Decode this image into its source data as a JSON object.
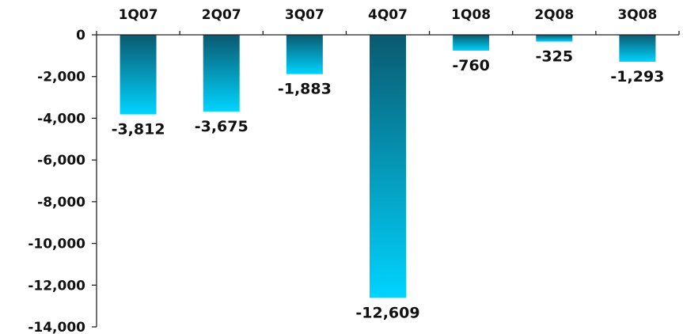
{
  "chart_data": {
    "type": "bar",
    "title": "",
    "xlabel": "",
    "ylabel": "",
    "categories": [
      "1Q07",
      "2Q07",
      "3Q07",
      "4Q07",
      "1Q08",
      "2Q08",
      "3Q08"
    ],
    "values": [
      -3812,
      -3675,
      -1883,
      -12609,
      -760,
      -325,
      -1293
    ],
    "value_labels": [
      "-3,812",
      "-3,675",
      "-1,883",
      "-12,609",
      "-760",
      "-325",
      "-1,293"
    ],
    "ylim": [
      -14000,
      0
    ],
    "yticks": [
      0,
      -2000,
      -4000,
      -6000,
      -8000,
      -10000,
      -12000,
      -14000
    ],
    "ytick_labels": [
      "0",
      "-2,000",
      "-4,000",
      "-6,000",
      "-8,000",
      "-10,000",
      "-12,000",
      "-14,000"
    ],
    "category_axis_position": "top",
    "grid": false,
    "legend": "none",
    "colors": {
      "bar_top": "#0a5a70",
      "bar_bottom": "#00d4ff",
      "axis": "#222222",
      "text": "#111111"
    }
  }
}
